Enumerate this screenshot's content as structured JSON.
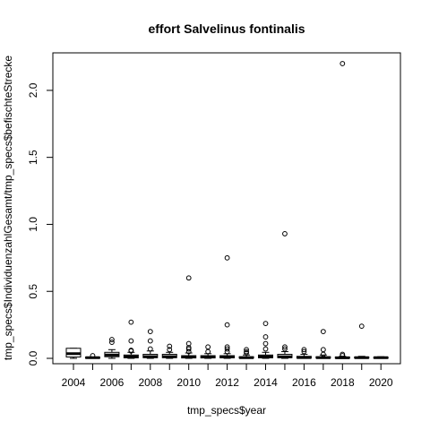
{
  "chart_data": {
    "type": "boxplot",
    "title": "effort Salvelinus fontinalis",
    "xlabel": "tmp_specs$year",
    "ylabel": "tmp_specs$IndividuenzahlGesamt/tmp_specs$befischteStrecke",
    "ylim": [
      -0.04,
      2.28
    ],
    "y_ticks": [
      0.0,
      0.5,
      1.0,
      1.5,
      2.0
    ],
    "y_tick_labels": [
      "0.0",
      "0.5",
      "1.0",
      "1.5",
      "2.0"
    ],
    "x_tick_labels": [
      "2004",
      "2006",
      "2008",
      "2010",
      "2012",
      "2014",
      "2016",
      "2018",
      "2020"
    ],
    "grid": false,
    "categories": [
      "2004",
      "2005",
      "2006",
      "2007",
      "2008",
      "2009",
      "2010",
      "2011",
      "2012",
      "2013",
      "2014",
      "2015",
      "2016",
      "2017",
      "2018",
      "2019",
      "2020"
    ],
    "boxes": [
      {
        "year": "2004",
        "min": 0.0,
        "q1": 0.01,
        "median": 0.035,
        "q3": 0.075,
        "max": 0.075,
        "outliers": []
      },
      {
        "year": "2005",
        "min": 0.0,
        "q1": 0.002,
        "median": 0.005,
        "q3": 0.008,
        "max": 0.01,
        "outliers": [
          0.02
        ]
      },
      {
        "year": "2006",
        "min": 0.0,
        "q1": 0.012,
        "median": 0.025,
        "q3": 0.045,
        "max": 0.065,
        "outliers": [
          0.12,
          0.14
        ]
      },
      {
        "year": "2007",
        "min": 0.0,
        "q1": 0.004,
        "median": 0.012,
        "q3": 0.025,
        "max": 0.045,
        "outliers": [
          0.055,
          0.06,
          0.13,
          0.27
        ]
      },
      {
        "year": "2008",
        "min": 0.0,
        "q1": 0.005,
        "median": 0.013,
        "q3": 0.03,
        "max": 0.055,
        "outliers": [
          0.07,
          0.13,
          0.2
        ]
      },
      {
        "year": "2009",
        "min": 0.0,
        "q1": 0.005,
        "median": 0.013,
        "q3": 0.03,
        "max": 0.045,
        "outliers": [
          0.065,
          0.09
        ]
      },
      {
        "year": "2010",
        "min": 0.0,
        "q1": 0.003,
        "median": 0.01,
        "q3": 0.02,
        "max": 0.04,
        "outliers": [
          0.05,
          0.07,
          0.08,
          0.11,
          0.6
        ]
      },
      {
        "year": "2011",
        "min": 0.0,
        "q1": 0.003,
        "median": 0.01,
        "q3": 0.02,
        "max": 0.035,
        "outliers": [
          0.05,
          0.085
        ]
      },
      {
        "year": "2012",
        "min": 0.0,
        "q1": 0.004,
        "median": 0.01,
        "q3": 0.02,
        "max": 0.035,
        "outliers": [
          0.05,
          0.07,
          0.085,
          0.25,
          0.75
        ]
      },
      {
        "year": "2013",
        "min": 0.0,
        "q1": 0.002,
        "median": 0.005,
        "q3": 0.012,
        "max": 0.025,
        "outliers": [
          0.04,
          0.05,
          0.065
        ]
      },
      {
        "year": "2014",
        "min": 0.0,
        "q1": 0.004,
        "median": 0.012,
        "q3": 0.025,
        "max": 0.045,
        "outliers": [
          0.07,
          0.11,
          0.16,
          0.26
        ]
      },
      {
        "year": "2015",
        "min": 0.0,
        "q1": 0.005,
        "median": 0.012,
        "q3": 0.03,
        "max": 0.05,
        "outliers": [
          0.07,
          0.085,
          0.93
        ]
      },
      {
        "year": "2016",
        "min": 0.0,
        "q1": 0.002,
        "median": 0.006,
        "q3": 0.015,
        "max": 0.03,
        "outliers": [
          0.05,
          0.065
        ]
      },
      {
        "year": "2017",
        "min": 0.0,
        "q1": 0.002,
        "median": 0.005,
        "q3": 0.012,
        "max": 0.025,
        "outliers": [
          0.03,
          0.065,
          0.2
        ]
      },
      {
        "year": "2018",
        "min": 0.0,
        "q1": 0.001,
        "median": 0.004,
        "q3": 0.01,
        "max": 0.015,
        "outliers": [
          0.02,
          0.03,
          2.2
        ]
      },
      {
        "year": "2019",
        "min": 0.0,
        "q1": 0.002,
        "median": 0.005,
        "q3": 0.01,
        "max": 0.015,
        "outliers": [
          0.24
        ]
      },
      {
        "year": "2020",
        "min": 0.0,
        "q1": 0.002,
        "median": 0.005,
        "q3": 0.008,
        "max": 0.012,
        "outliers": []
      }
    ],
    "colors": {
      "stroke": "#000000",
      "box_fill": "#ffffff",
      "background": "#ffffff"
    }
  }
}
